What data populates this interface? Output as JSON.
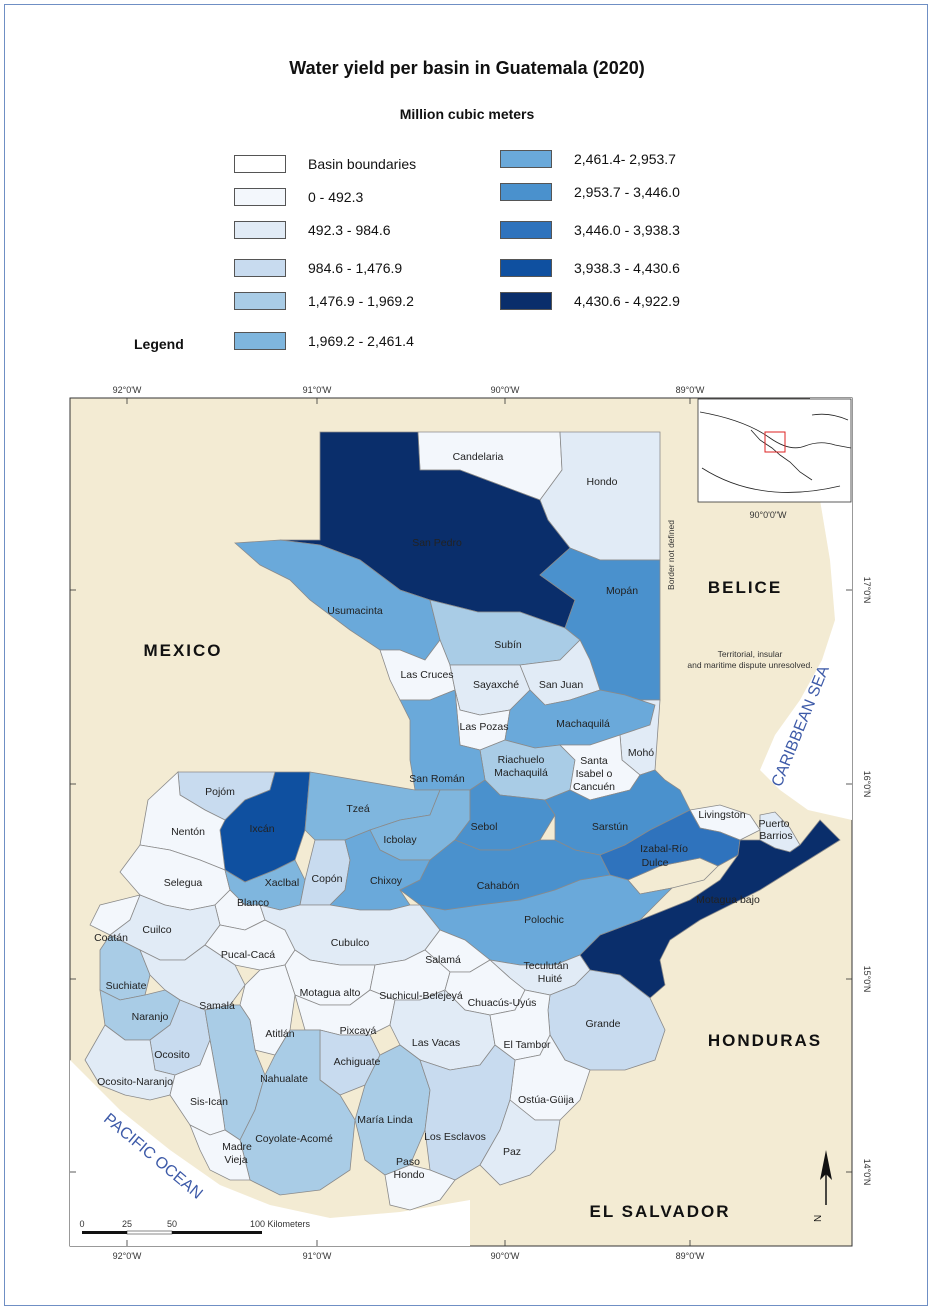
{
  "title": "Water yield per basin in Guatemala (2020)",
  "units": "Million cubic meters",
  "legend": {
    "title": "Legend",
    "classes": [
      {
        "label": "Basin boundaries",
        "color": "#ffffff"
      },
      {
        "label": "0 - 492.3",
        "color": "#f3f7fc"
      },
      {
        "label": "492.3 - 984.6",
        "color": "#e1ebf6"
      },
      {
        "label": "984.6 - 1,476.9",
        "color": "#c8dbef"
      },
      {
        "label": "1,476.9 - 1,969.2",
        "color": "#a9cce6"
      },
      {
        "label": "1,969.2 - 2,461.4",
        "color": "#7fb6de"
      },
      {
        "label": "2,461.4- 2,953.7",
        "color": "#6aa9da"
      },
      {
        "label": "2,953.7 - 3,446.0",
        "color": "#4a91cd"
      },
      {
        "label": "3,446.0 - 3,938.3",
        "color": "#2f73bd"
      },
      {
        "label": "3,938.3 - 4,430.6",
        "color": "#0f50a0"
      },
      {
        "label": "4,430.6 - 4,922.9",
        "color": "#0a2e6b"
      }
    ]
  },
  "countries": {
    "mexico": "MEXICO",
    "belice": "BELICE",
    "honduras": "HONDURAS",
    "el_salvador": "EL SALVADOR"
  },
  "seas": {
    "caribbean": "CARIBBEAN SEA",
    "pacific": "PACIFIC OCEAN"
  },
  "annotations": {
    "border": "Border not defined",
    "dispute_1": "Territorial, insular",
    "dispute_2": "and maritime dispute unresolved."
  },
  "graticule": {
    "top": [
      "92°0'W",
      "91°0'W",
      "90°0'W",
      "89°0'W"
    ],
    "bottom": [
      "92°0'W",
      "91°0'W",
      "90°0'W",
      "89°0'W"
    ],
    "right": [
      "17°0'N",
      "16°0'N",
      "15°0'N",
      "14°0'N"
    ]
  },
  "inset_label": "90°0'0\"W",
  "scale": {
    "ticks": [
      "0",
      "25",
      "50",
      "100 Kilometers"
    ]
  },
  "north": "N",
  "basins": [
    {
      "name": "Candelaria",
      "class": 1
    },
    {
      "name": "Hondo",
      "class": 2
    },
    {
      "name": "San Pedro",
      "class": 10
    },
    {
      "name": "Mopán",
      "class": 7
    },
    {
      "name": "Usumacinta",
      "class": 6
    },
    {
      "name": "Subín",
      "class": 4
    },
    {
      "name": "Las Cruces",
      "class": 1
    },
    {
      "name": "Sayaxché",
      "class": 2
    },
    {
      "name": "San Juan",
      "class": 2
    },
    {
      "name": "Las Pozas",
      "class": 1
    },
    {
      "name": "Machaquilá",
      "class": 6
    },
    {
      "name": "Mohó",
      "class": 2
    },
    {
      "name": "Riachuelo",
      "class": 4
    },
    {
      "name": "Machaquilá",
      "class": 4
    },
    {
      "name": "Santa",
      "class": 1
    },
    {
      "name": "Isabel o",
      "class": 1
    },
    {
      "name": "Cancuén",
      "class": 1
    },
    {
      "name": "San Román",
      "class": 6
    },
    {
      "name": "Pojóm",
      "class": 3
    },
    {
      "name": "Ixcán",
      "class": 9
    },
    {
      "name": "Nentón",
      "class": 1
    },
    {
      "name": "Tzeá",
      "class": 5
    },
    {
      "name": "Icbolay",
      "class": 5
    },
    {
      "name": "Sebol",
      "class": 7
    },
    {
      "name": "Sarstún",
      "class": 7
    },
    {
      "name": "Livingston",
      "class": 1
    },
    {
      "name": "Puerto",
      "class": 2
    },
    {
      "name": "Barrios",
      "class": 2
    },
    {
      "name": "Izabal-Río",
      "class": 8
    },
    {
      "name": "Dulce",
      "class": 8
    },
    {
      "name": "Selegua",
      "class": 1
    },
    {
      "name": "Xaclbal",
      "class": 5
    },
    {
      "name": "Copón",
      "class": 3
    },
    {
      "name": "Chixoy",
      "class": 6
    },
    {
      "name": "Cahabón",
      "class": 7
    },
    {
      "name": "Motagua bajo",
      "class": 10
    },
    {
      "name": "Blanco",
      "class": 1
    },
    {
      "name": "Polochic",
      "class": 6
    },
    {
      "name": "Coatán",
      "class": 1
    },
    {
      "name": "Cuilco",
      "class": 2
    },
    {
      "name": "Pucal-Cacá",
      "class": 1
    },
    {
      "name": "Cubulco",
      "class": 2
    },
    {
      "name": "Salamá",
      "class": 1
    },
    {
      "name": "Teculután",
      "class": 2
    },
    {
      "name": "Huité",
      "class": 2
    },
    {
      "name": "Suchiate",
      "class": 4
    },
    {
      "name": "Motagua alto",
      "class": 1
    },
    {
      "name": "Suchicul-Belejeyá",
      "class": 1
    },
    {
      "name": "Chuacús-Uyús",
      "class": 1
    },
    {
      "name": "Samalá",
      "class": 2
    },
    {
      "name": "Naranjo",
      "class": 4
    },
    {
      "name": "Atitlán",
      "class": 1
    },
    {
      "name": "Pixcayá",
      "class": 1
    },
    {
      "name": "Grande",
      "class": 3
    },
    {
      "name": "Las Vacas",
      "class": 2
    },
    {
      "name": "El Tambor",
      "class": 1
    },
    {
      "name": "Ocosito",
      "class": 3
    },
    {
      "name": "Achiguate",
      "class": 3
    },
    {
      "name": "Nahualate",
      "class": 4
    },
    {
      "name": "Ocosito-Naranjo",
      "class": 2
    },
    {
      "name": "Sis-Ican",
      "class": 1
    },
    {
      "name": "Ostúa-Güija",
      "class": 1
    },
    {
      "name": "María Linda",
      "class": 4
    },
    {
      "name": "Coyolate-Acomé",
      "class": 4
    },
    {
      "name": "Los Esclavos",
      "class": 3
    },
    {
      "name": "Madre",
      "class": 1
    },
    {
      "name": "Vieja",
      "class": 1
    },
    {
      "name": "Paso",
      "class": 1
    },
    {
      "name": "Hondo",
      "class": 1
    },
    {
      "name": "Paz",
      "class": 2
    }
  ]
}
